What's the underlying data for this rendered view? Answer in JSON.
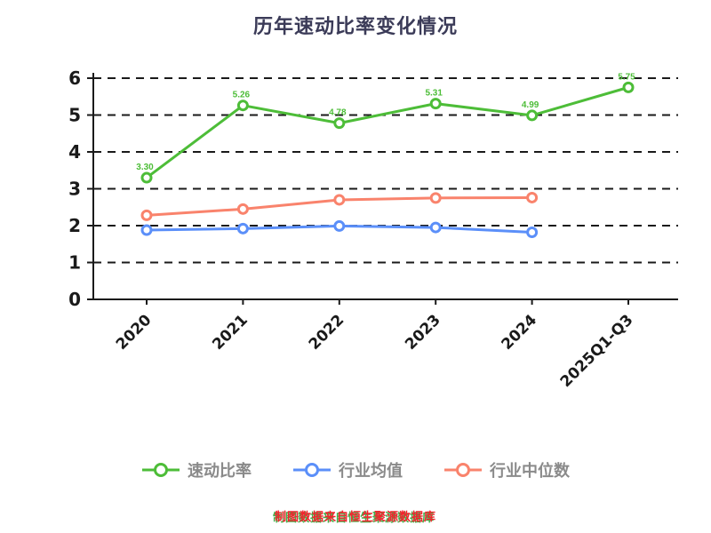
{
  "title": "历年速动比率变化情况",
  "footer": "制图数据来自恒生聚源数据库",
  "colors": {
    "green": "#4dbd38",
    "blue": "#5b8ff9",
    "orange": "#f9836c",
    "title": "#3b3b58",
    "axis": "#1a1a1a",
    "legend_text": "#8a8a8a",
    "footer_red": "#f5222d",
    "footer_green": "#3eb049"
  },
  "legend": [
    {
      "label": "速动比率",
      "color_key": "green"
    },
    {
      "label": "行业均值",
      "color_key": "blue"
    },
    {
      "label": "行业中位数",
      "color_key": "orange"
    }
  ],
  "chart_data": {
    "type": "line",
    "title": "历年速动比率变化情况",
    "categories": [
      "2020",
      "2021",
      "2022",
      "2023",
      "2024",
      "2025Q1-Q3"
    ],
    "series": [
      {
        "name": "速动比率",
        "color_key": "green",
        "values": [
          3.3,
          5.26,
          4.78,
          5.31,
          4.99,
          5.75
        ],
        "labels": [
          "3.30",
          "5.26",
          "4.78",
          "5.31",
          "4.99",
          "5.75"
        ]
      },
      {
        "name": "行业均值",
        "color_key": "blue",
        "values": [
          1.88,
          1.92,
          1.99,
          1.95,
          1.82,
          null
        ]
      },
      {
        "name": "行业中位数",
        "color_key": "orange",
        "values": [
          2.28,
          2.45,
          2.7,
          2.75,
          2.76,
          null
        ]
      }
    ],
    "xlabel": "",
    "ylabel": "",
    "ylim": [
      0,
      6
    ],
    "yticks": [
      0,
      1,
      2,
      3,
      4,
      5,
      6
    ],
    "grid": true,
    "grid_style": "dashed",
    "legend_position": "bottom"
  }
}
